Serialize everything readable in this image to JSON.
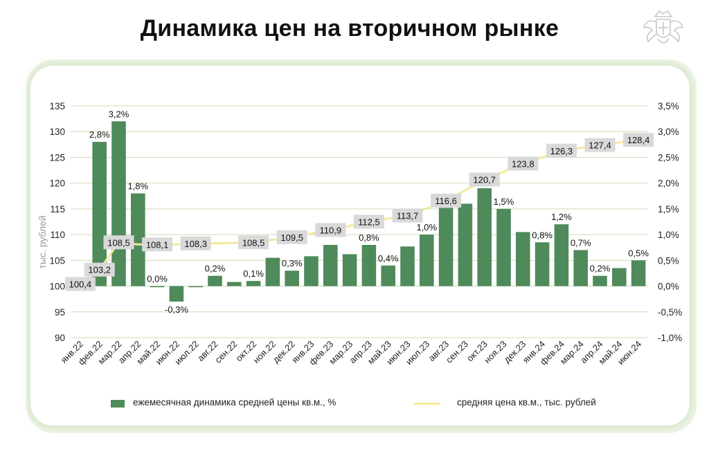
{
  "title": "Динамика цен на вторичном рынке",
  "logo": {
    "icon": "coat-of-arms-icon"
  },
  "colors": {
    "bar": "#4f8a5b",
    "line": "#f5e99c",
    "grid": "#c9dfb6",
    "label_bg": "#d9d9d9"
  },
  "chart_data": {
    "type": "bar",
    "categories": [
      "янв.22",
      "фев.22",
      "мар.22",
      "апр.22",
      "май.22",
      "июн.22",
      "июл.22",
      "авг.22",
      "сен.22",
      "окт.22",
      "ноя.22",
      "дек.22",
      "янв.23",
      "фев.23",
      "мар.23",
      "апр.23",
      "май.23",
      "июн.23",
      "июл.23",
      "авг.23",
      "сен.23",
      "окт.23",
      "ноя.23",
      "дек.23",
      "янв.24",
      "фев.24",
      "мар.24",
      "апр.24",
      "май.24",
      "июн.24"
    ],
    "left_axis": {
      "label": "тыс. рублей",
      "min": 90,
      "max": 135,
      "ticks": [
        "90",
        "95",
        "100",
        "105",
        "110",
        "115",
        "120",
        "125",
        "130",
        "135"
      ]
    },
    "right_axis": {
      "min": -1.0,
      "max": 3.5,
      "ticks": [
        "-1,0%",
        "-0,5%",
        "0,0%",
        "0,5%",
        "1,0%",
        "1,5%",
        "2,0%",
        "2,5%",
        "3,0%",
        "3,5%"
      ]
    },
    "grid": true,
    "series": [
      {
        "name": "ежемесячная динамика средней цены кв.м., %",
        "type": "bar",
        "axis": "right",
        "values": [
          0.0,
          2.8,
          3.2,
          1.8,
          0.0,
          -0.3,
          0.0,
          0.2,
          0.08,
          0.1,
          0.55,
          0.3,
          0.58,
          0.8,
          0.62,
          0.8,
          0.4,
          0.77,
          1.0,
          1.52,
          1.6,
          1.9,
          1.5,
          1.05,
          0.85,
          1.2,
          0.7,
          0.2,
          0.35,
          0.5
        ],
        "labels": [
          "",
          "2,8%",
          "3,2%",
          "1,8%",
          "0,0%",
          "-0,3%",
          "",
          "0,2%",
          "",
          "0,1%",
          "",
          "0,3%",
          "",
          "",
          "",
          "0,8%",
          "0,4%",
          "",
          "1,0%",
          "",
          "",
          "1,9%",
          "1,5%",
          "",
          "0,8%",
          "1,2%",
          "0,7%",
          "0,2%",
          "",
          "0,5%"
        ]
      },
      {
        "name": "средняя цена кв.м., тыс. рублей",
        "type": "line",
        "axis": "left",
        "values": [
          100.4,
          103.2,
          108.5,
          108.1,
          108.1,
          108.1,
          108.3,
          108.3,
          108.4,
          108.5,
          109.0,
          109.5,
          110.2,
          110.9,
          111.7,
          112.5,
          113.1,
          113.7,
          115.1,
          116.6,
          118.6,
          120.7,
          122.2,
          123.8,
          125.0,
          126.3,
          126.8,
          127.4,
          127.9,
          128.4
        ],
        "labels": [
          "100,4",
          "103,2",
          "108,5",
          "",
          "108,1",
          "",
          "108,3",
          "",
          "",
          "108,5",
          "",
          "109,5",
          "",
          "110,9",
          "",
          "112,5",
          "",
          "113,7",
          "",
          "116,6",
          "",
          "120,7",
          "",
          "123,8",
          "",
          "126,3",
          "",
          "127,4",
          "",
          "128,4"
        ]
      }
    ]
  }
}
